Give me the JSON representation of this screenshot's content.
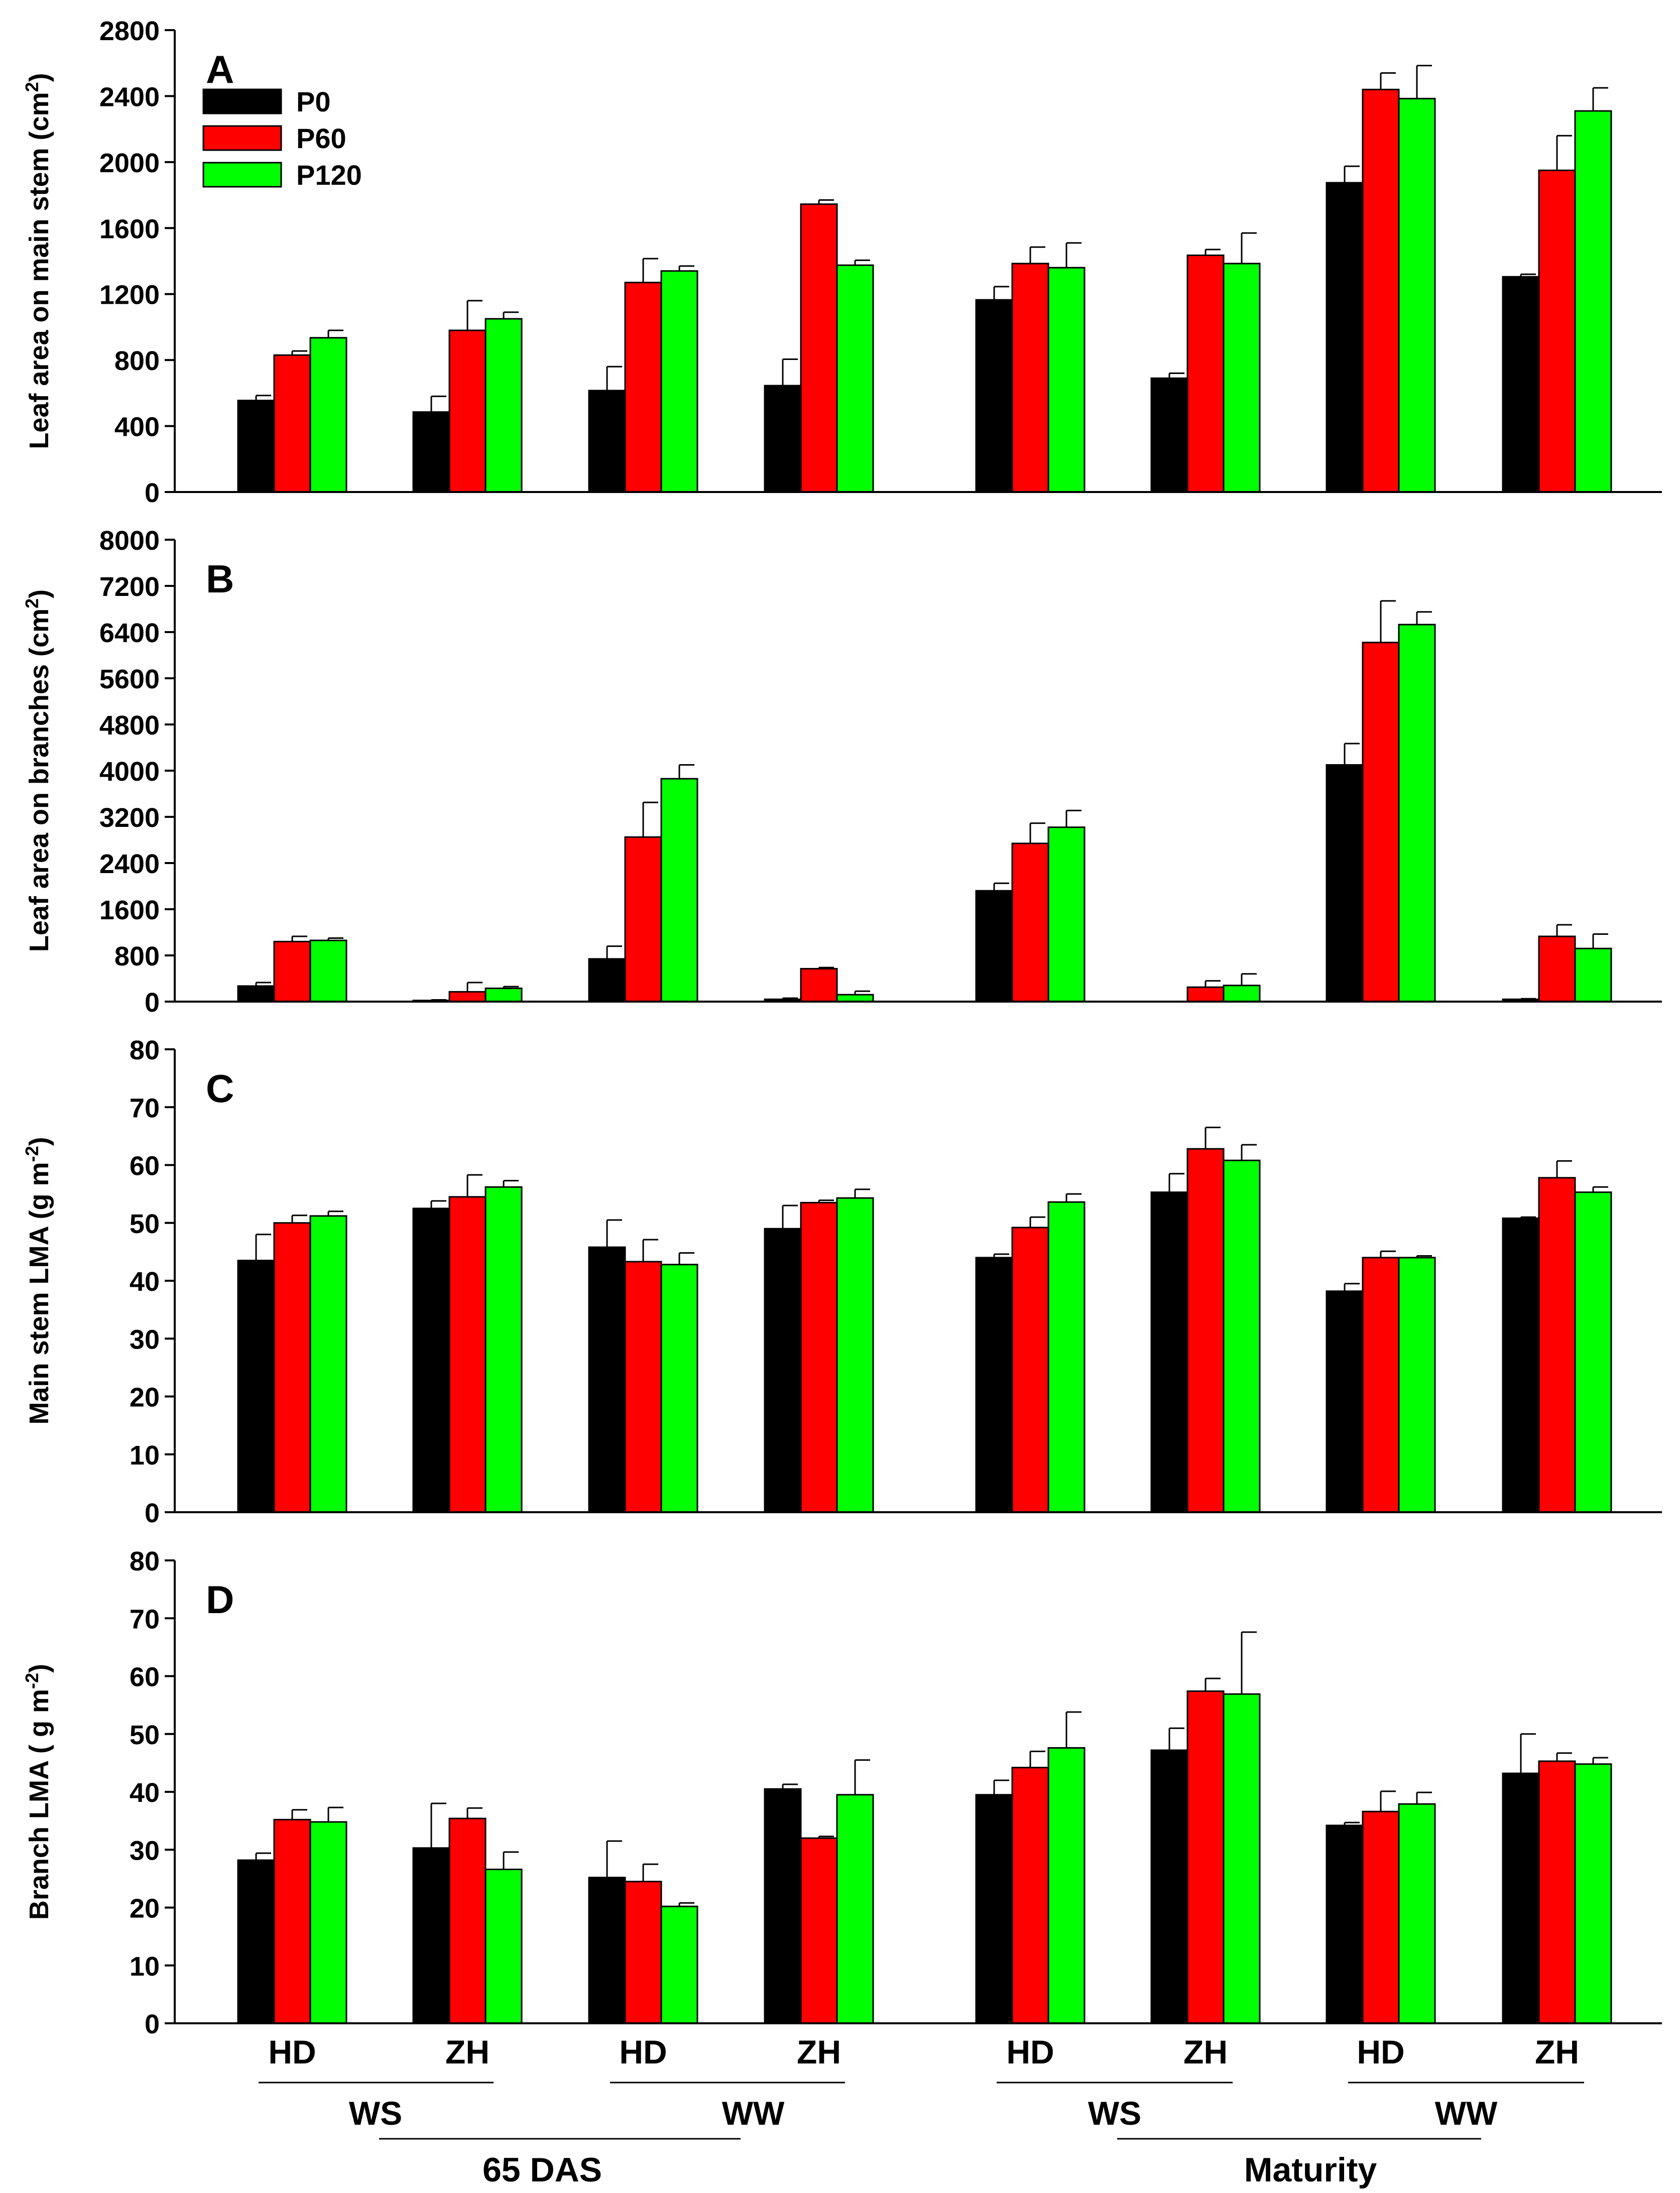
{
  "chart_data": [
    {
      "type": "bar",
      "panel": "A",
      "ylabel": "Leaf area on main stem (cm",
      "ylabel_sup": "2",
      "ylabel_tail": ")",
      "ylim": [
        0,
        2800
      ],
      "yticks": [
        "0",
        "400",
        "800",
        "1200",
        "1600",
        "2000",
        "2400",
        "2800"
      ],
      "legend_placement": "top-left",
      "series": [
        {
          "name": "P0",
          "values": [
            555,
            485,
            615,
            645,
            1165,
            690,
            1875,
            1305
          ],
          "errors": [
            30,
            95,
            145,
            160,
            80,
            30,
            100,
            15
          ]
        },
        {
          "name": "P60",
          "values": [
            830,
            980,
            1270,
            1745,
            1385,
            1435,
            2440,
            1950
          ],
          "errors": [
            25,
            180,
            145,
            25,
            100,
            35,
            100,
            210
          ]
        },
        {
          "name": "P120",
          "values": [
            935,
            1050,
            1340,
            1375,
            1360,
            1385,
            2385,
            2310
          ],
          "errors": [
            45,
            40,
            30,
            30,
            150,
            185,
            200,
            140
          ]
        }
      ]
    },
    {
      "type": "bar",
      "panel": "B",
      "ylabel": "Leaf area on branches (cm",
      "ylabel_sup": "2",
      "ylabel_tail": ")",
      "ylim": [
        0,
        8000
      ],
      "yticks": [
        "0",
        "800",
        "1600",
        "2400",
        "3200",
        "4000",
        "4800",
        "5600",
        "6400",
        "7200",
        "8000"
      ],
      "series": [
        {
          "name": "P0",
          "values": [
            270,
            20,
            740,
            40,
            1920,
            0,
            4100,
            40
          ],
          "errors": [
            60,
            10,
            220,
            20,
            130,
            0,
            370,
            10
          ]
        },
        {
          "name": "P60",
          "values": [
            1040,
            170,
            2850,
            570,
            2740,
            250,
            6220,
            1130
          ],
          "errors": [
            90,
            160,
            600,
            20,
            350,
            110,
            720,
            200
          ]
        },
        {
          "name": "P120",
          "values": [
            1060,
            230,
            3860,
            120,
            3020,
            280,
            6530,
            920
          ],
          "errors": [
            40,
            30,
            240,
            60,
            290,
            200,
            220,
            250
          ]
        }
      ]
    },
    {
      "type": "bar",
      "panel": "C",
      "ylabel": "Main stem LMA (g m",
      "ylabel_sup": "-2",
      "ylabel_tail": ")",
      "ylim": [
        0,
        80
      ],
      "yticks": [
        "0",
        "10",
        "20",
        "30",
        "40",
        "50",
        "60",
        "70",
        "80"
      ],
      "series": [
        {
          "name": "P0",
          "values": [
            43.5,
            52.5,
            45.8,
            49.0,
            44.0,
            55.3,
            38.2,
            50.8
          ],
          "errors": [
            4.5,
            1.3,
            4.7,
            4.0,
            0.6,
            3.2,
            1.3,
            0.2
          ]
        },
        {
          "name": "P60",
          "values": [
            50.0,
            54.5,
            43.3,
            53.5,
            49.2,
            62.8,
            44.0,
            57.8
          ],
          "errors": [
            1.3,
            3.8,
            3.8,
            0.4,
            1.8,
            3.7,
            1.1,
            2.9
          ]
        },
        {
          "name": "P120",
          "values": [
            51.2,
            56.2,
            42.8,
            54.3,
            53.6,
            60.8,
            44.0,
            55.3
          ],
          "errors": [
            0.8,
            1.1,
            2.0,
            1.5,
            1.4,
            2.7,
            0.3,
            0.9
          ]
        }
      ]
    },
    {
      "type": "bar",
      "panel": "D",
      "ylabel": "Branch LMA ( g m",
      "ylabel_sup": "-2",
      "ylabel_tail": ")",
      "ylim": [
        0,
        80
      ],
      "yticks": [
        "0",
        "10",
        "20",
        "30",
        "40",
        "50",
        "60",
        "70",
        "80"
      ],
      "series": [
        {
          "name": "P0",
          "values": [
            28.2,
            30.3,
            25.2,
            40.5,
            39.5,
            47.2,
            34.2,
            43.2
          ],
          "errors": [
            1.2,
            7.7,
            6.3,
            0.8,
            2.5,
            3.8,
            0.5,
            6.8
          ]
        },
        {
          "name": "P60",
          "values": [
            35.2,
            35.4,
            24.5,
            32.0,
            44.2,
            57.4,
            36.6,
            45.3
          ],
          "errors": [
            1.7,
            1.8,
            3.0,
            0.3,
            2.8,
            2.2,
            3.5,
            1.4
          ]
        },
        {
          "name": "P120",
          "values": [
            34.8,
            26.6,
            20.2,
            39.5,
            47.6,
            56.9,
            37.9,
            44.8
          ],
          "errors": [
            2.5,
            3.0,
            0.6,
            6.0,
            6.2,
            10.7,
            2.0,
            1.1
          ]
        }
      ]
    }
  ],
  "colors": {
    "P0": "#000000",
    "P60": "#ff0000",
    "P120": "#00ff00"
  },
  "x_axis": {
    "cultivars": [
      "HD",
      "ZH",
      "HD",
      "ZH",
      "HD",
      "ZH",
      "HD",
      "ZH"
    ],
    "water_treatments": [
      "WS",
      "WW",
      "WS",
      "WW"
    ],
    "stages": [
      "65 DAS",
      "Maturity"
    ]
  }
}
